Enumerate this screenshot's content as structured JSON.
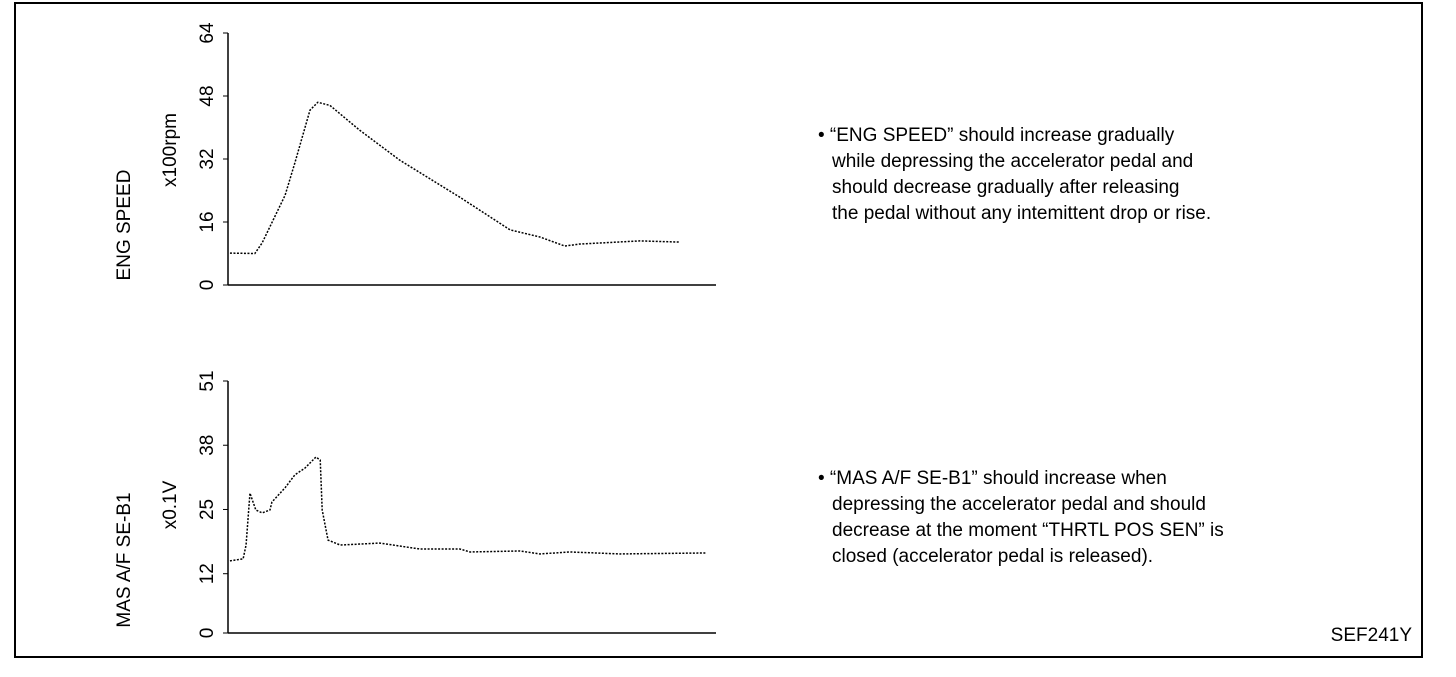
{
  "chart_data": [
    {
      "type": "line",
      "y_label": "ENG SPEED",
      "y_unit": "x100rpm",
      "color": "#000000",
      "xlim": [
        0,
        100
      ],
      "ylim": [
        0,
        64
      ],
      "yticks": [
        0,
        16,
        32,
        48,
        64
      ],
      "x": [
        0.4,
        5.5,
        7,
        11.7,
        13.7,
        16.8,
        18.4,
        20.9,
        27,
        35.2,
        47.5,
        57.8,
        63.9,
        69,
        72.1,
        84.4,
        92.6
      ],
      "values": [
        8.1,
        8,
        10.7,
        22.8,
        31,
        44.4,
        46.4,
        45.6,
        39.3,
        31.7,
        22.3,
        14,
        12.2,
        9.9,
        10.4,
        11.2,
        10.9
      ]
    },
    {
      "type": "line",
      "y_label": "MAS A/F SE-B1",
      "y_unit": "x0.1V",
      "color": "#000000",
      "xlim": [
        0,
        100
      ],
      "ylim": [
        0,
        51
      ],
      "yticks": [
        0,
        12,
        25,
        38,
        51
      ],
      "x": [
        0.4,
        3.1,
        3.7,
        4.5,
        5.7,
        7,
        8.6,
        9,
        11.7,
        13.7,
        15.8,
        18,
        18.9,
        19.3,
        20.5,
        23,
        31.1,
        39.3,
        47.5,
        49.6,
        59.8,
        63.9,
        70.1,
        80.3,
        98
      ],
      "values": [
        14.6,
        15,
        17.8,
        28.3,
        24.9,
        24.3,
        24.9,
        26.5,
        29.4,
        32,
        33.4,
        35.6,
        35,
        24.9,
        18.8,
        17.8,
        18.2,
        17,
        17,
        16.4,
        16.6,
        16,
        16.4,
        16,
        16.2
      ]
    }
  ],
  "notes": [
    [
      "• “ENG SPEED” should increase gradually",
      "while depressing the accelerator pedal and",
      "should decrease gradually after releasing",
      "the pedal without any intemittent drop or rise."
    ],
    [
      "• “MAS A/F SE-B1” should increase when",
      "depressing the accelerator pedal and  should",
      "decrease at the moment “THRTL POS SEN” is",
      "closed (accelerator pedal is released)."
    ]
  ],
  "figure_code": "SEF241Y"
}
